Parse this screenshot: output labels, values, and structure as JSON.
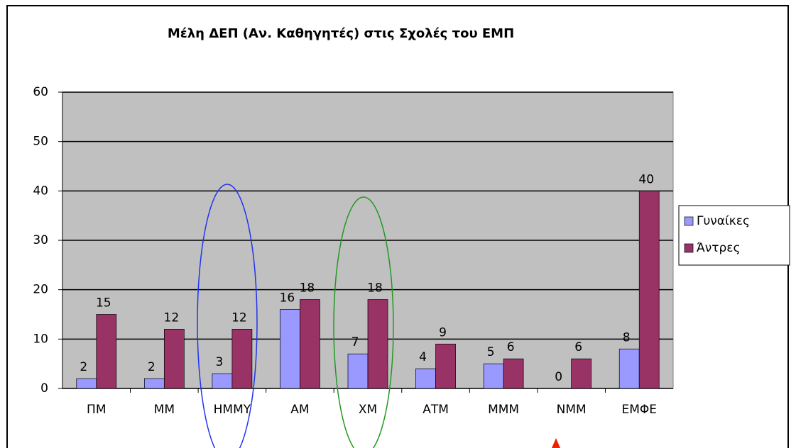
{
  "chart_data": {
    "type": "bar",
    "title": "Μέλη ΔΕΠ (Αν. Καθηγητές) στις Σχολές του ΕΜΠ",
    "categories": [
      "ΠΜ",
      "ΜΜ",
      "ΗΜΜΥ",
      "ΑΜ",
      "ΧΜ",
      "ΑΤΜ",
      "ΜΜΜ",
      "ΝΜΜ",
      "ΕΜΦΕ"
    ],
    "series": [
      {
        "name": "Γυναίκες",
        "color": "#9999ff",
        "values": [
          2,
          2,
          3,
          16,
          7,
          4,
          5,
          0,
          8
        ]
      },
      {
        "name": "Άντρες",
        "color": "#993366",
        "values": [
          15,
          12,
          12,
          18,
          18,
          9,
          6,
          6,
          40
        ]
      }
    ],
    "ylim": [
      0,
      60
    ],
    "yticks": [
      0,
      10,
      20,
      30,
      40,
      50,
      60
    ],
    "grid": true,
    "legend": "right"
  }
}
